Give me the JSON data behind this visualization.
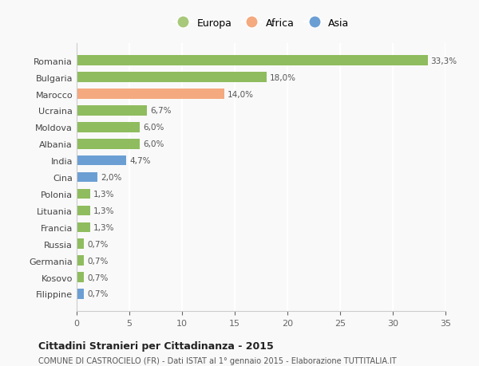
{
  "categories": [
    "Filippine",
    "Kosovo",
    "Germania",
    "Russia",
    "Francia",
    "Lituania",
    "Polonia",
    "Cina",
    "India",
    "Albania",
    "Moldova",
    "Ucraina",
    "Marocco",
    "Bulgaria",
    "Romania"
  ],
  "values": [
    0.7,
    0.7,
    0.7,
    0.7,
    1.3,
    1.3,
    1.3,
    2.0,
    4.7,
    6.0,
    6.0,
    6.7,
    14.0,
    18.0,
    33.3
  ],
  "labels": [
    "0,7%",
    "0,7%",
    "0,7%",
    "0,7%",
    "1,3%",
    "1,3%",
    "1,3%",
    "2,0%",
    "4,7%",
    "6,0%",
    "6,0%",
    "6,7%",
    "14,0%",
    "18,0%",
    "33,3%"
  ],
  "colors": [
    "#6b9fd4",
    "#8fbc5e",
    "#8fbc5e",
    "#8fbc5e",
    "#8fbc5e",
    "#8fbc5e",
    "#8fbc5e",
    "#6b9fd4",
    "#6b9fd4",
    "#8fbc5e",
    "#8fbc5e",
    "#8fbc5e",
    "#f4a97f",
    "#8fbc5e",
    "#8fbc5e"
  ],
  "europa_color": "#a8c87a",
  "africa_color": "#f4a97f",
  "asia_color": "#6b9fd4",
  "title": "Cittadini Stranieri per Cittadinanza - 2015",
  "subtitle": "COMUNE DI CASTROCIELO (FR) - Dati ISTAT al 1° gennaio 2015 - Elaborazione TUTTITALIA.IT",
  "xlim": [
    0,
    35
  ],
  "xticks": [
    0,
    5,
    10,
    15,
    20,
    25,
    30,
    35
  ],
  "background_color": "#f9f9f9",
  "grid_color": "#ffffff",
  "bar_height": 0.6
}
